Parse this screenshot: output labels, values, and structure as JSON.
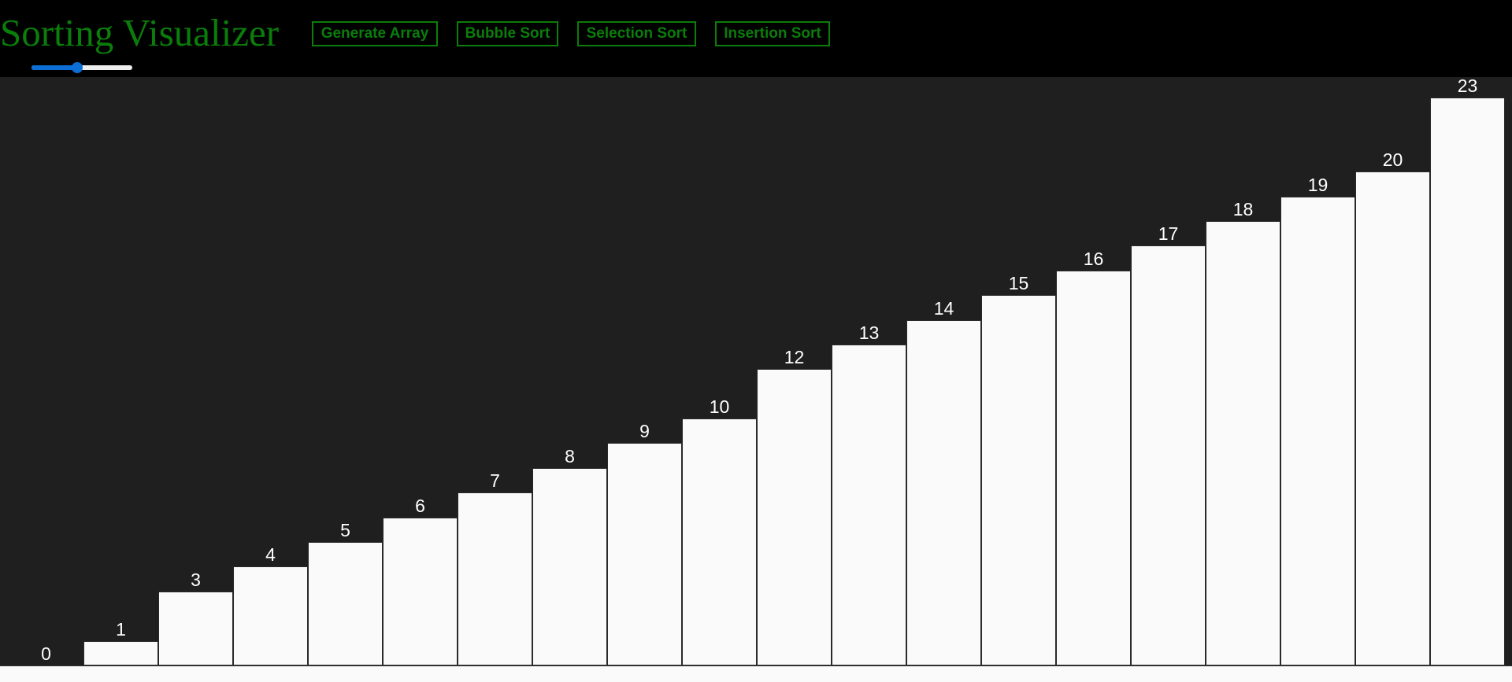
{
  "header": {
    "title": "Sorting Visualizer",
    "buttons": {
      "generate": "Generate Array",
      "bubble": "Bubble Sort",
      "selection": "Selection Sort",
      "insertion": "Insertion Sort"
    },
    "size_slider": {
      "value_fraction": 0.45
    }
  },
  "colors": {
    "accent_green": "#0a7d0a",
    "slider_blue": "#0b6fd6",
    "bar_fill": "#fafafa",
    "plot_background": "#1f1f1f"
  },
  "chart_data": {
    "type": "bar",
    "categories": [
      "0",
      "1",
      "3",
      "4",
      "5",
      "6",
      "7",
      "8",
      "9",
      "10",
      "12",
      "13",
      "14",
      "15",
      "16",
      "17",
      "18",
      "19",
      "20",
      "23"
    ],
    "values": [
      0,
      1,
      3,
      4,
      5,
      6,
      7,
      8,
      9,
      10,
      12,
      13,
      14,
      15,
      16,
      17,
      18,
      19,
      20,
      23
    ],
    "title": "",
    "xlabel": "",
    "ylabel": "",
    "ylim": [
      0,
      23
    ],
    "grid": false
  }
}
